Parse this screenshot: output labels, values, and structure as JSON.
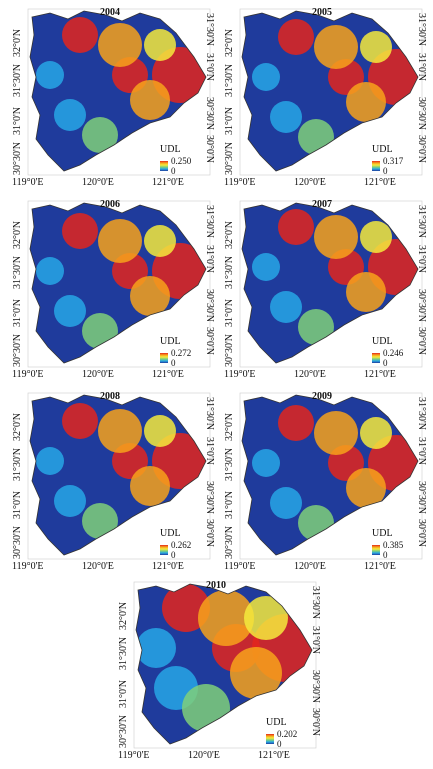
{
  "panels": [
    {
      "year": "2004",
      "legend_title": "UDL",
      "max": "0.250",
      "min": "0"
    },
    {
      "year": "2005",
      "legend_title": "UDL",
      "max": "0.317",
      "min": "0"
    },
    {
      "year": "2006",
      "legend_title": "UDL",
      "max": "0.272",
      "min": "0"
    },
    {
      "year": "2007",
      "legend_title": "UDL",
      "max": "0.246",
      "min": "0"
    },
    {
      "year": "2008",
      "legend_title": "UDL",
      "max": "0.262",
      "min": "0"
    },
    {
      "year": "2009",
      "legend_title": "UDL",
      "max": "0.385",
      "min": "0"
    },
    {
      "year": "2010",
      "legend_title": "UDL",
      "max": "0.202",
      "min": "0"
    }
  ],
  "axes": {
    "x_ticks": [
      "119°0'E",
      "120°0'E",
      "121°0'E"
    ],
    "y_left_ticks": [
      "32°0'N",
      "31°30'N",
      "31°0'N",
      "30°30'N"
    ],
    "y_right_ticks": [
      "31°30'N",
      "31°0'N",
      "30°30'N",
      "30°0'N"
    ]
  },
  "colors": {
    "high": "#e3261d",
    "mid_high": "#f7a21b",
    "mid": "#f5ea3c",
    "mid_low": "#7fd07a",
    "low_mid": "#27a7e6",
    "low": "#1f3b9c"
  }
}
